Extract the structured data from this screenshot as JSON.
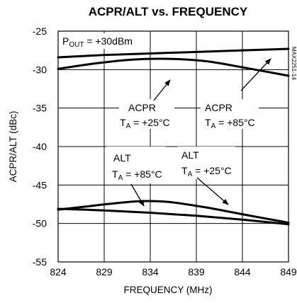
{
  "chart_data": {
    "type": "line",
    "title": "ACPR/ALT vs. FREQUENCY",
    "xlabel": "FREQUENCY (MHz)",
    "ylabel": "ACPR/ALT (dBc)",
    "xlim": [
      824,
      849
    ],
    "ylim": [
      -55,
      -25
    ],
    "xticks": [
      824,
      829,
      834,
      839,
      844,
      849
    ],
    "yticks": [
      -25,
      -30,
      -35,
      -40,
      -45,
      -50,
      -55
    ],
    "grid": true,
    "condition_label": "P",
    "condition_sub": "OUT",
    "condition_value": " = +30dBm",
    "side_label": "MAX2251-14",
    "series": [
      {
        "label_top": "ACPR",
        "label_bottom": "T",
        "label_sub": "A",
        "label_value": " = +25°C",
        "x": [
          824,
          828,
          832,
          836,
          840,
          844,
          849
        ],
        "y": [
          -29.9,
          -29.2,
          -28.7,
          -28.6,
          -28.9,
          -29.7,
          -30.8
        ]
      },
      {
        "label_top": "ACPR",
        "label_bottom": "T",
        "label_sub": "A",
        "label_value": " = +85°C",
        "x": [
          824,
          829,
          834,
          839,
          844,
          849
        ],
        "y": [
          -28.4,
          -28.1,
          -27.9,
          -27.7,
          -27.5,
          -27.3
        ]
      },
      {
        "label_top": "ALT",
        "label_bottom": "T",
        "label_sub": "A",
        "label_value": " = +85°C",
        "x": [
          824,
          829,
          834,
          839,
          844,
          849
        ],
        "y": [
          -48.1,
          -48.3,
          -48.6,
          -49.0,
          -49.5,
          -50.1
        ]
      },
      {
        "label_top": "ALT",
        "label_bottom": "T",
        "label_sub": "A",
        "label_value": " = +25°C",
        "x": [
          824,
          827,
          830,
          833,
          836,
          840,
          844,
          849
        ],
        "y": [
          -48.2,
          -47.8,
          -47.4,
          -47.1,
          -47.2,
          -47.9,
          -48.8,
          -49.9
        ]
      }
    ]
  }
}
